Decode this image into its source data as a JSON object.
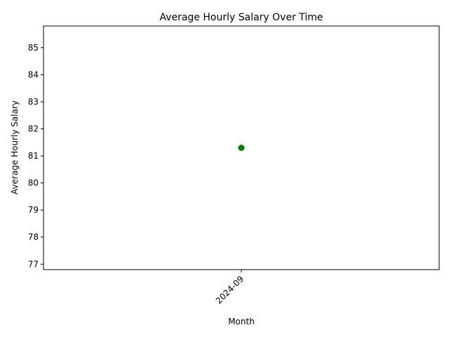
{
  "chart_data": {
    "type": "scatter",
    "title": "Average Hourly Salary Over Time",
    "xlabel": "Month",
    "ylabel": "Average Hourly Salary",
    "categories": [
      "2024-09"
    ],
    "series": [
      {
        "values": [
          81.3
        ],
        "color": "#008000"
      }
    ],
    "ylim": [
      76.8,
      85.8
    ],
    "yticks": [
      77,
      78,
      79,
      80,
      81,
      82,
      83,
      84,
      85
    ],
    "xtick_rotation": 45,
    "grid": false,
    "legend": "none"
  }
}
